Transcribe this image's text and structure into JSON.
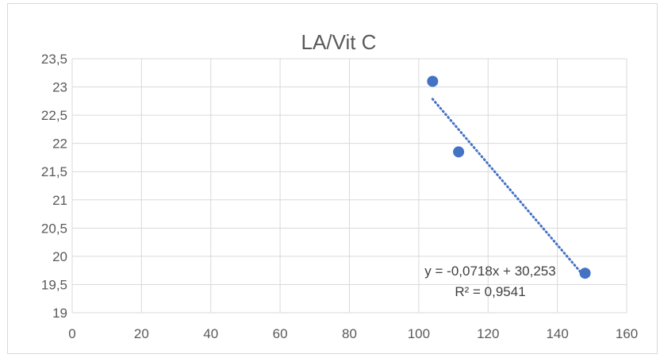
{
  "chart_data": {
    "type": "scatter",
    "title": "LA/Vit C",
    "xlabel": "",
    "ylabel": "",
    "xlim": [
      0,
      160
    ],
    "ylim": [
      19,
      23.5
    ],
    "x_ticks": [
      "0",
      "20",
      "40",
      "60",
      "80",
      "100",
      "120",
      "140",
      "160"
    ],
    "y_ticks": [
      "19",
      "19,5",
      "20",
      "20,5",
      "21",
      "21,5",
      "22",
      "22,5",
      "23",
      "23,5"
    ],
    "grid": true,
    "legend": "none",
    "series": [
      {
        "color": "#4472c4",
        "points": [
          {
            "x": 104,
            "y": 23.1
          },
          {
            "x": 111.5,
            "y": 21.85
          },
          {
            "x": 148,
            "y": 19.7
          }
        ]
      }
    ],
    "trendline": {
      "type": "linear",
      "style": "dotted",
      "color": "#4472c4",
      "slope": -0.0718,
      "intercept": 30.253,
      "x_range": [
        104,
        148
      ],
      "equation_label": "y = -0,0718x + 30,253",
      "r2_label": "R² = 0,9541"
    }
  }
}
